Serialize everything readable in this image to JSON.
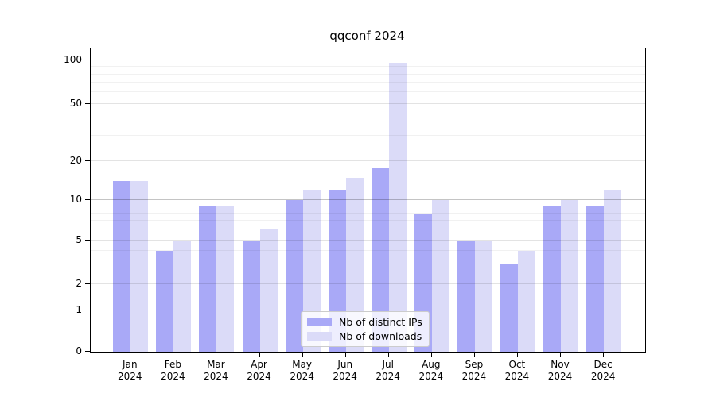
{
  "title": "qqconf 2024",
  "legend": {
    "position": "lower center",
    "items": [
      {
        "label": "Nb of distinct IPs",
        "color": "#a9a9f7"
      },
      {
        "label": "Nb of downloads",
        "color": "#dbdbf8"
      }
    ]
  },
  "axes": {
    "ytick_labels": [
      "0",
      "1",
      "2",
      "5",
      "10",
      "20",
      "50",
      "100"
    ],
    "xtick_labels": [
      "Jan 2024",
      "Feb 2024",
      "Mar 2024",
      "Apr 2024",
      "May 2024",
      "Jun 2024",
      "Jul 2024",
      "Aug 2024",
      "Sep 2024",
      "Oct 2024",
      "Nov 2024",
      "Dec 2024"
    ]
  },
  "chart_data": {
    "type": "bar",
    "title": "qqconf 2024",
    "categories": [
      "Jan 2024",
      "Feb 2024",
      "Mar 2024",
      "Apr 2024",
      "May 2024",
      "Jun 2024",
      "Jul 2024",
      "Aug 2024",
      "Sep 2024",
      "Oct 2024",
      "Nov 2024",
      "Dec 2024"
    ],
    "series": [
      {
        "name": "Nb of distinct IPs",
        "color": "#a9a9f7",
        "values": [
          14,
          4,
          9,
          5,
          10,
          12,
          18,
          8,
          5,
          3,
          9,
          9
        ]
      },
      {
        "name": "Nb of downloads",
        "color": "#dbdbf8",
        "values": [
          14,
          5,
          9,
          6,
          12,
          15,
          96,
          10,
          5,
          4,
          10,
          12
        ]
      }
    ],
    "xlabel": "",
    "ylabel": "",
    "yscale": "log-like with linear 0-1 segment",
    "yticks": [
      0,
      1,
      2,
      5,
      10,
      20,
      50,
      100
    ],
    "minor_yticks": [
      3,
      4,
      6,
      7,
      8,
      9,
      30,
      40,
      60,
      70,
      80,
      90
    ],
    "ylim": [
      0,
      120
    ],
    "grid": "horizontal",
    "legend_position": "lower center"
  }
}
